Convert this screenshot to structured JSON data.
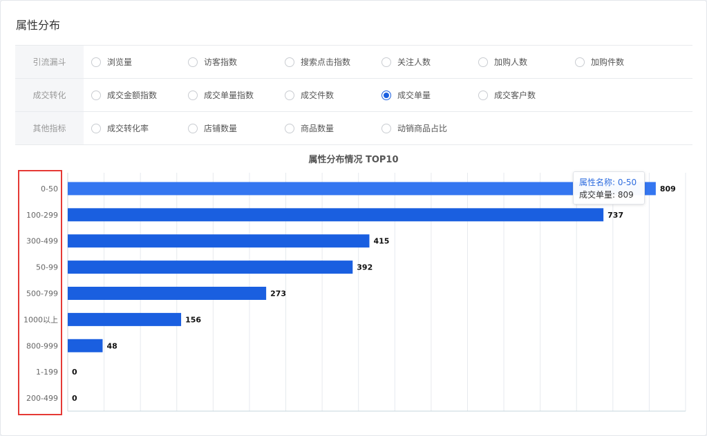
{
  "title": "属性分布",
  "filters": {
    "rows": [
      {
        "label": "引流漏斗",
        "options": [
          {
            "label": "浏览量",
            "checked": false
          },
          {
            "label": "访客指数",
            "checked": false
          },
          {
            "label": "搜索点击指数",
            "checked": false
          },
          {
            "label": "关注人数",
            "checked": false
          },
          {
            "label": "加购人数",
            "checked": false
          },
          {
            "label": "加购件数",
            "checked": false
          }
        ]
      },
      {
        "label": "成交转化",
        "options": [
          {
            "label": "成交金额指数",
            "checked": false
          },
          {
            "label": "成交单量指数",
            "checked": false
          },
          {
            "label": "成交件数",
            "checked": false
          },
          {
            "label": "成交单量",
            "checked": true
          },
          {
            "label": "成交客户数",
            "checked": false
          }
        ]
      },
      {
        "label": "其他指标",
        "options": [
          {
            "label": "成交转化率",
            "checked": false
          },
          {
            "label": "店铺数量",
            "checked": false
          },
          {
            "label": "商品数量",
            "checked": false
          },
          {
            "label": "动销商品占比",
            "checked": false
          }
        ]
      }
    ]
  },
  "chart_data": {
    "type": "bar",
    "orientation": "horizontal",
    "title": "属性分布情况 TOP10",
    "categories": [
      "0-50",
      "100-299",
      "300-499",
      "50-99",
      "500-799",
      "1000以上",
      "800-999",
      "1-199",
      "200-499"
    ],
    "values": [
      809,
      737,
      415,
      392,
      273,
      156,
      48,
      0,
      0
    ],
    "highlighted_index": 0,
    "xlim": [
      0,
      850
    ],
    "grid": true,
    "colors": {
      "bar": "#1a5fe0",
      "bar_highlight": "#3476f0"
    }
  },
  "tooltip": {
    "line1": "属性名称: 0-50",
    "line2": "成交单量: 809"
  }
}
